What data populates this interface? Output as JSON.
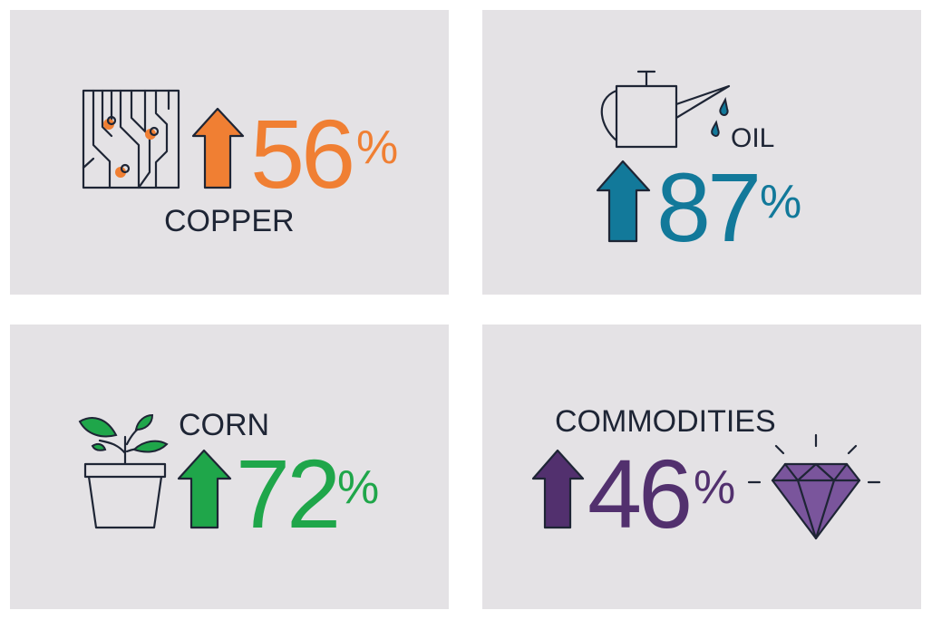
{
  "panels": [
    {
      "label": "COPPER",
      "value": 56,
      "unit": "%",
      "color": "#f07f33"
    },
    {
      "label": "OIL",
      "value": 87,
      "unit": "%",
      "color": "#12799a"
    },
    {
      "label": "CORN",
      "value": 72,
      "unit": "%",
      "color": "#1fa64a"
    },
    {
      "label": "COMMODITIES",
      "value": 46,
      "unit": "%",
      "color": "#52306e"
    }
  ]
}
